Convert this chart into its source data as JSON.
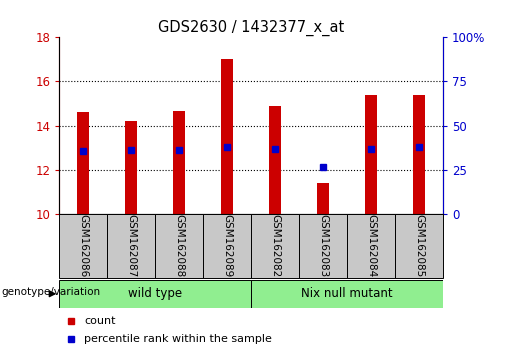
{
  "title": "GDS2630 / 1432377_x_at",
  "samples": [
    "GSM162086",
    "GSM162087",
    "GSM162088",
    "GSM162089",
    "GSM162082",
    "GSM162083",
    "GSM162084",
    "GSM162085"
  ],
  "bar_tops": [
    14.6,
    14.2,
    14.65,
    17.0,
    14.9,
    11.4,
    15.4,
    15.4
  ],
  "percentile_vals": [
    12.85,
    12.9,
    12.9,
    13.05,
    12.95,
    12.15,
    12.95,
    13.05
  ],
  "bar_bottom": 10,
  "ylim_left": [
    10,
    18
  ],
  "ylim_right": [
    0,
    100
  ],
  "yticks_left": [
    10,
    12,
    14,
    16,
    18
  ],
  "yticks_right": [
    0,
    25,
    50,
    75,
    100
  ],
  "bar_color": "#CC0000",
  "percentile_color": "#0000CC",
  "bar_width": 0.25,
  "group_row_color": "#90EE90",
  "tick_color_left": "#CC0000",
  "tick_color_right": "#0000CC",
  "legend_items": [
    {
      "label": "count",
      "color": "#CC0000"
    },
    {
      "label": "percentile rank within the sample",
      "color": "#0000CC"
    }
  ],
  "genotype_label": "genotype/variation",
  "tick_label_area_color": "#C8C8C8"
}
